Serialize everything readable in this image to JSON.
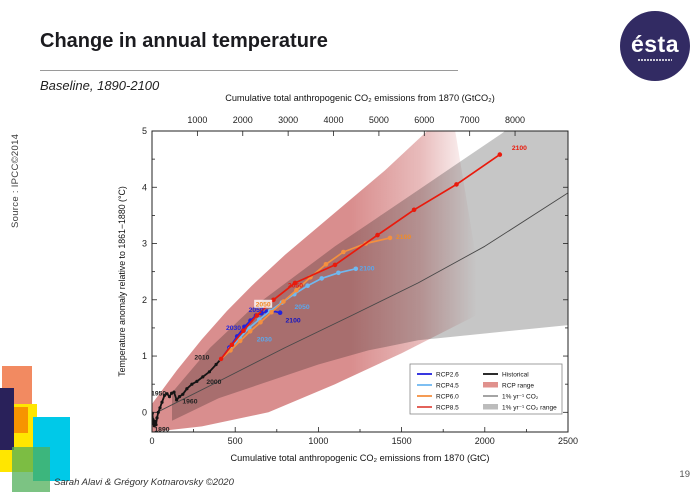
{
  "slide": {
    "title": "Change in annual temperature",
    "subtitle": "Baseline, 1890-2100",
    "source_label": "Source : IPCC©2014",
    "footer": "Sarah Alavi & Grégory Kotnarovsky ©2020",
    "page_number": "19",
    "logo_text": "ésta"
  },
  "deco_colors": {
    "salmon": "#f28a61",
    "yellow": "#ffe600",
    "orange": "#f79400",
    "navy": "#29215a",
    "cyan": "#00c9e8",
    "green": "rgba(80,175,90,0.75)"
  },
  "chart_data": {
    "type": "line",
    "title": "",
    "x_axis_bottom": {
      "label": "Cumulative total anthropogenic CO₂ emissions from 1870 (GtC)",
      "range": [
        0,
        2500
      ],
      "ticks": [
        0,
        500,
        1000,
        1500,
        2000,
        2500
      ],
      "minor_step": 250
    },
    "x_axis_top": {
      "label": "Cumulative total anthropogenic CO₂ emissions from 1870 (GtCO₂)",
      "ticks": [
        1000,
        2000,
        3000,
        4000,
        5000,
        6000,
        7000,
        8000
      ],
      "gtco2_per_gtc": 3.6667
    },
    "y_axis": {
      "label": "Temperature anomaly relative to 1861−1880 (°C)",
      "range": [
        -0.35,
        5
      ],
      "ticks": [
        0,
        1,
        2,
        3,
        4,
        5
      ],
      "minor_step": 0.5
    },
    "bands": [
      {
        "name": "RCP range",
        "color": "#d98e8e",
        "fade": true,
        "top": [
          [
            0,
            0.15
          ],
          [
            150,
            0.75
          ],
          [
            300,
            1.3
          ],
          [
            450,
            1.8
          ],
          [
            600,
            2.25
          ],
          [
            800,
            2.8
          ],
          [
            1000,
            3.3
          ],
          [
            1200,
            3.8
          ],
          [
            1400,
            4.3
          ],
          [
            1600,
            4.85
          ],
          [
            1800,
            5.4
          ]
        ],
        "bottom": [
          [
            0,
            -0.35
          ],
          [
            300,
            -0.25
          ],
          [
            700,
            0.0
          ],
          [
            1100,
            0.5
          ],
          [
            1500,
            1.05
          ],
          [
            1800,
            1.5
          ],
          [
            2000,
            1.8
          ]
        ]
      },
      {
        "name": "1% yr⁻¹ CO₂ range",
        "color": "#c6c6c6",
        "fade": false,
        "top": [
          [
            120,
            0.35
          ],
          [
            350,
            1.15
          ],
          [
            600,
            1.85
          ],
          [
            850,
            2.4
          ],
          [
            1100,
            2.95
          ],
          [
            1350,
            3.45
          ],
          [
            1600,
            3.95
          ],
          [
            1850,
            4.45
          ],
          [
            2100,
            4.95
          ],
          [
            2350,
            5.5
          ],
          [
            2500,
            5.8
          ]
        ],
        "bottom": [
          [
            120,
            -0.15
          ],
          [
            400,
            0.25
          ],
          [
            700,
            0.55
          ],
          [
            1000,
            0.85
          ],
          [
            1300,
            1.1
          ],
          [
            1600,
            1.28
          ],
          [
            2000,
            1.4
          ],
          [
            2500,
            1.55
          ]
        ]
      }
    ],
    "series": [
      {
        "name": "1% yr⁻¹ CO₂",
        "color": "#484848",
        "width": 0.9,
        "markers": false,
        "points": [
          [
            30,
            0
          ],
          [
            400,
            0.55
          ],
          [
            800,
            1.15
          ],
          [
            1200,
            1.72
          ],
          [
            1600,
            2.3
          ],
          [
            2000,
            2.95
          ],
          [
            2500,
            3.9
          ]
        ]
      },
      {
        "name": "Historical",
        "key": "historical",
        "color": "#141414",
        "width": 1.8,
        "markers": true,
        "marker_r": 1.6,
        "points": [
          [
            2,
            -0.02
          ],
          [
            6,
            -0.13
          ],
          [
            10,
            -0.2
          ],
          [
            14,
            -0.24
          ],
          [
            18,
            -0.16
          ],
          [
            24,
            -0.22
          ],
          [
            30,
            -0.1
          ],
          [
            38,
            0.0
          ],
          [
            48,
            0.08
          ],
          [
            60,
            0.18
          ],
          [
            75,
            0.3
          ],
          [
            90,
            0.33
          ],
          [
            105,
            0.28
          ],
          [
            118,
            0.34
          ],
          [
            132,
            0.36
          ],
          [
            148,
            0.22
          ],
          [
            165,
            0.28
          ],
          [
            185,
            0.32
          ],
          [
            210,
            0.42
          ],
          [
            240,
            0.5
          ],
          [
            270,
            0.55
          ],
          [
            305,
            0.63
          ],
          [
            345,
            0.72
          ],
          [
            385,
            0.85
          ],
          [
            415,
            0.95
          ]
        ]
      },
      {
        "name": "RCP2.6",
        "key": "rcp26",
        "color": "#2222dd",
        "width": 1.7,
        "markers": true,
        "marker_r": 2.3,
        "points": [
          [
            415,
            0.95
          ],
          [
            465,
            1.15
          ],
          [
            512,
            1.35
          ],
          [
            555,
            1.52
          ],
          [
            592,
            1.63
          ],
          [
            625,
            1.72
          ],
          [
            658,
            1.76
          ],
          [
            690,
            1.79
          ],
          [
            725,
            1.8
          ],
          [
            770,
            1.77
          ]
        ]
      },
      {
        "name": "RCP4.5",
        "key": "rcp45",
        "color": "#70b8f0",
        "width": 1.7,
        "markers": true,
        "marker_r": 2.3,
        "points": [
          [
            415,
            0.95
          ],
          [
            470,
            1.13
          ],
          [
            527,
            1.32
          ],
          [
            585,
            1.5
          ],
          [
            645,
            1.65
          ],
          [
            710,
            1.8
          ],
          [
            780,
            1.95
          ],
          [
            855,
            2.1
          ],
          [
            935,
            2.25
          ],
          [
            1020,
            2.38
          ],
          [
            1120,
            2.48
          ],
          [
            1225,
            2.55
          ]
        ]
      },
      {
        "name": "RCP6.0",
        "key": "rcp60",
        "color": "#f49040",
        "width": 1.7,
        "markers": true,
        "marker_r": 2.3,
        "points": [
          [
            415,
            0.95
          ],
          [
            472,
            1.1
          ],
          [
            530,
            1.27
          ],
          [
            590,
            1.44
          ],
          [
            652,
            1.6
          ],
          [
            718,
            1.78
          ],
          [
            790,
            1.97
          ],
          [
            868,
            2.17
          ],
          [
            952,
            2.4
          ],
          [
            1045,
            2.63
          ],
          [
            1150,
            2.85
          ],
          [
            1285,
            3.0
          ],
          [
            1430,
            3.1
          ]
        ]
      },
      {
        "name": "RCP8.5",
        "key": "rcp85",
        "color": "#e91a0c",
        "width": 1.7,
        "markers": true,
        "marker_r": 2.3,
        "points": [
          [
            415,
            0.95
          ],
          [
            480,
            1.2
          ],
          [
            550,
            1.45
          ],
          [
            630,
            1.72
          ],
          [
            730,
            2.0
          ],
          [
            860,
            2.3
          ],
          [
            1100,
            2.62
          ],
          [
            1355,
            3.15
          ],
          [
            1575,
            3.6
          ],
          [
            1830,
            4.05
          ],
          [
            2090,
            4.58
          ]
        ]
      }
    ],
    "annotations": [
      {
        "text": "1890",
        "x": 60,
        "y": -0.3,
        "color": "#222222"
      },
      {
        "text": "1950",
        "x": 40,
        "y": 0.34,
        "color": "#222222"
      },
      {
        "text": "1960",
        "x": 228,
        "y": 0.2,
        "color": "#222222"
      },
      {
        "text": "2000",
        "x": 372,
        "y": 0.54,
        "color": "#222222"
      },
      {
        "text": "2010",
        "x": 300,
        "y": 0.98,
        "color": "#222222"
      },
      {
        "text": "2030",
        "x": 490,
        "y": 1.5,
        "color": "#2222dd"
      },
      {
        "text": "2050",
        "x": 626,
        "y": 1.82,
        "color": "#2222dd"
      },
      {
        "text": "2100",
        "x": 848,
        "y": 1.64,
        "color": "#1515c0",
        "bold": true
      },
      {
        "text": "2030",
        "x": 675,
        "y": 1.3,
        "color": "#5aa8ee"
      },
      {
        "text": "2050",
        "x": 902,
        "y": 1.88,
        "color": "#5aa8ee"
      },
      {
        "text": "2100",
        "x": 1292,
        "y": 2.56,
        "color": "#5aa8ee"
      },
      {
        "text": "2050",
        "x": 668,
        "y": 1.92,
        "color": "#f08c28",
        "box": true
      },
      {
        "text": "2100",
        "x": 1512,
        "y": 3.12,
        "color": "#f08c28"
      },
      {
        "text": "2050",
        "x": 862,
        "y": 2.26,
        "color": "#e91a0c"
      },
      {
        "text": "2100",
        "x": 2208,
        "y": 4.7,
        "color": "#e91a0c"
      }
    ],
    "legend": {
      "position": "bottom-right",
      "columns": [
        [
          {
            "label": "RCP2.6",
            "swatch": "line",
            "color": "#2222dd"
          },
          {
            "label": "RCP4.5",
            "swatch": "line",
            "color": "#70b8f0"
          },
          {
            "label": "RCP6.0",
            "swatch": "line",
            "color": "#f49040"
          },
          {
            "label": "RCP8.5",
            "swatch": "line",
            "color": "#e05048"
          }
        ],
        [
          {
            "label": "Historical",
            "swatch": "line",
            "color": "#141414"
          },
          {
            "label": "RCP range",
            "swatch": "patch",
            "color": "#e0918d"
          },
          {
            "label": "1% yr⁻¹ CO₂",
            "swatch": "thinline",
            "color": "#484848"
          },
          {
            "label": "1% yr⁻¹ CO₂ range",
            "swatch": "patch",
            "color": "#bcbcbc"
          }
        ]
      ]
    }
  }
}
